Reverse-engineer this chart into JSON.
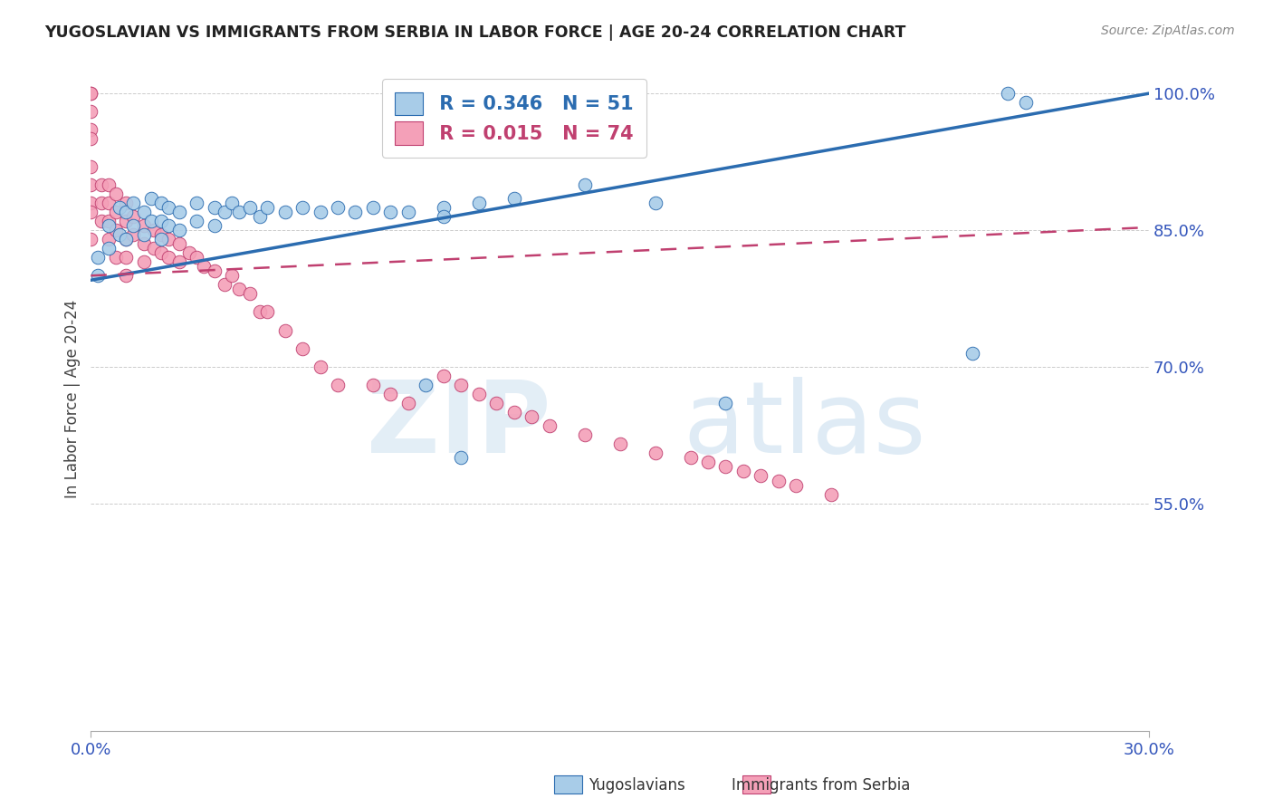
{
  "title": "YUGOSLAVIAN VS IMMIGRANTS FROM SERBIA IN LABOR FORCE | AGE 20-24 CORRELATION CHART",
  "source": "Source: ZipAtlas.com",
  "ylabel": "In Labor Force | Age 20-24",
  "xmin": 0.0,
  "xmax": 0.3,
  "ymin": 0.3,
  "ymax": 1.03,
  "yticks": [
    0.55,
    0.7,
    0.85,
    1.0
  ],
  "ytick_labels": [
    "55.0%",
    "70.0%",
    "85.0%",
    "100.0%"
  ],
  "xtick_left_label": "0.0%",
  "xtick_right_label": "30.0%",
  "legend_r1": "R = 0.346",
  "legend_n1": "N = 51",
  "legend_r2": "R = 0.015",
  "legend_n2": "N = 74",
  "series1_color": "#a8cce8",
  "series2_color": "#f4a0b8",
  "trend1_color": "#2b6cb0",
  "trend2_color": "#c04070",
  "background_color": "#ffffff",
  "yug_x": [
    0.002,
    0.002,
    0.005,
    0.005,
    0.008,
    0.008,
    0.01,
    0.01,
    0.012,
    0.012,
    0.015,
    0.015,
    0.017,
    0.017,
    0.02,
    0.02,
    0.02,
    0.022,
    0.022,
    0.025,
    0.025,
    0.03,
    0.03,
    0.035,
    0.035,
    0.038,
    0.04,
    0.042,
    0.045,
    0.048,
    0.05,
    0.055,
    0.06,
    0.065,
    0.07,
    0.075,
    0.08,
    0.085,
    0.09,
    0.095,
    0.1,
    0.1,
    0.105,
    0.11,
    0.12,
    0.14,
    0.16,
    0.18,
    0.25,
    0.26,
    0.265
  ],
  "yug_y": [
    0.82,
    0.8,
    0.855,
    0.83,
    0.875,
    0.845,
    0.87,
    0.84,
    0.88,
    0.855,
    0.87,
    0.845,
    0.885,
    0.86,
    0.88,
    0.86,
    0.84,
    0.875,
    0.855,
    0.87,
    0.85,
    0.88,
    0.86,
    0.875,
    0.855,
    0.87,
    0.88,
    0.87,
    0.875,
    0.865,
    0.875,
    0.87,
    0.875,
    0.87,
    0.875,
    0.87,
    0.875,
    0.87,
    0.87,
    0.68,
    0.875,
    0.865,
    0.6,
    0.88,
    0.885,
    0.9,
    0.88,
    0.66,
    0.715,
    1.0,
    0.99
  ],
  "ser_x": [
    0.0,
    0.0,
    0.0,
    0.0,
    0.0,
    0.0,
    0.0,
    0.0,
    0.0,
    0.0,
    0.003,
    0.003,
    0.003,
    0.005,
    0.005,
    0.005,
    0.005,
    0.007,
    0.007,
    0.007,
    0.007,
    0.01,
    0.01,
    0.01,
    0.01,
    0.01,
    0.012,
    0.012,
    0.015,
    0.015,
    0.015,
    0.018,
    0.018,
    0.02,
    0.02,
    0.022,
    0.022,
    0.025,
    0.025,
    0.028,
    0.03,
    0.032,
    0.035,
    0.038,
    0.04,
    0.042,
    0.045,
    0.048,
    0.05,
    0.055,
    0.06,
    0.065,
    0.07,
    0.08,
    0.085,
    0.09,
    0.1,
    0.105,
    0.11,
    0.115,
    0.12,
    0.125,
    0.13,
    0.14,
    0.15,
    0.16,
    0.17,
    0.175,
    0.18,
    0.185,
    0.19,
    0.195,
    0.2,
    0.21
  ],
  "ser_y": [
    1.0,
    1.0,
    0.98,
    0.96,
    0.95,
    0.92,
    0.9,
    0.88,
    0.87,
    0.84,
    0.9,
    0.88,
    0.86,
    0.9,
    0.88,
    0.86,
    0.84,
    0.89,
    0.87,
    0.85,
    0.82,
    0.88,
    0.86,
    0.84,
    0.82,
    0.8,
    0.865,
    0.845,
    0.855,
    0.835,
    0.815,
    0.85,
    0.83,
    0.845,
    0.825,
    0.84,
    0.82,
    0.835,
    0.815,
    0.825,
    0.82,
    0.81,
    0.805,
    0.79,
    0.8,
    0.785,
    0.78,
    0.76,
    0.76,
    0.74,
    0.72,
    0.7,
    0.68,
    0.68,
    0.67,
    0.66,
    0.69,
    0.68,
    0.67,
    0.66,
    0.65,
    0.645,
    0.635,
    0.625,
    0.615,
    0.605,
    0.6,
    0.595,
    0.59,
    0.585,
    0.58,
    0.575,
    0.57,
    0.56
  ],
  "trend1_x0": 0.0,
  "trend1_y0": 0.795,
  "trend1_x1": 0.3,
  "trend1_y1": 1.0,
  "trend2_x0": 0.0,
  "trend2_y0": 0.8,
  "trend2_x1": 0.3,
  "trend2_y1": 0.853
}
